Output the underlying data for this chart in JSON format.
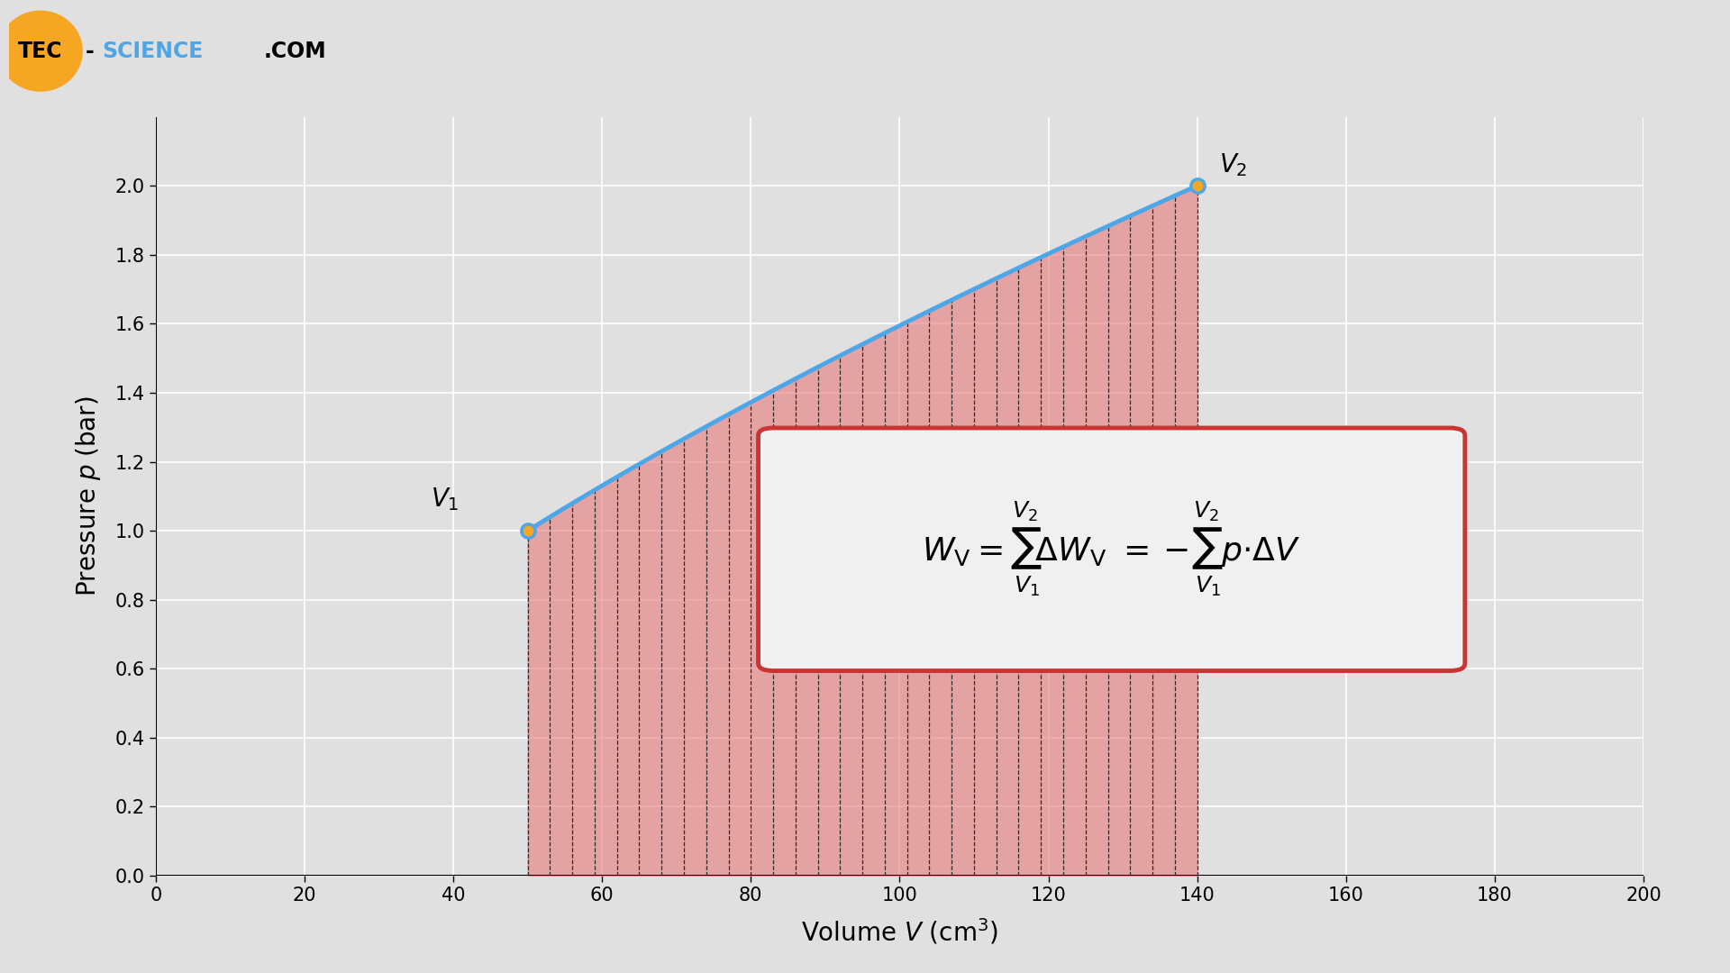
{
  "xlabel": "Volume V (cm³)",
  "ylabel": "Pressure p (bar)",
  "xlim": [
    0,
    200
  ],
  "ylim": [
    0,
    2.2
  ],
  "xticks": [
    0,
    20,
    40,
    60,
    80,
    100,
    120,
    140,
    160,
    180,
    200
  ],
  "yticks": [
    0,
    0.2,
    0.4,
    0.6,
    0.8,
    1.0,
    1.2,
    1.4,
    1.6,
    1.8,
    2.0
  ],
  "V1": 50,
  "V2": 140,
  "p1": 1.0,
  "p2": 2.0,
  "curve_color": "#4da6e8",
  "fill_color": "#e87a7a",
  "fill_alpha": 0.6,
  "bg_color": "#e0e0e0",
  "grid_color": "#ffffff",
  "num_bars": 30,
  "dashed_line_color": "#111111",
  "point_marker_color": "#f5a623",
  "point_marker_edge": "#4da6e8",
  "formula_box_color": "#f0f0f0",
  "formula_box_edge": "#cc3333",
  "logo_orange": "#f5a623",
  "logo_blue": "#4da6e8"
}
